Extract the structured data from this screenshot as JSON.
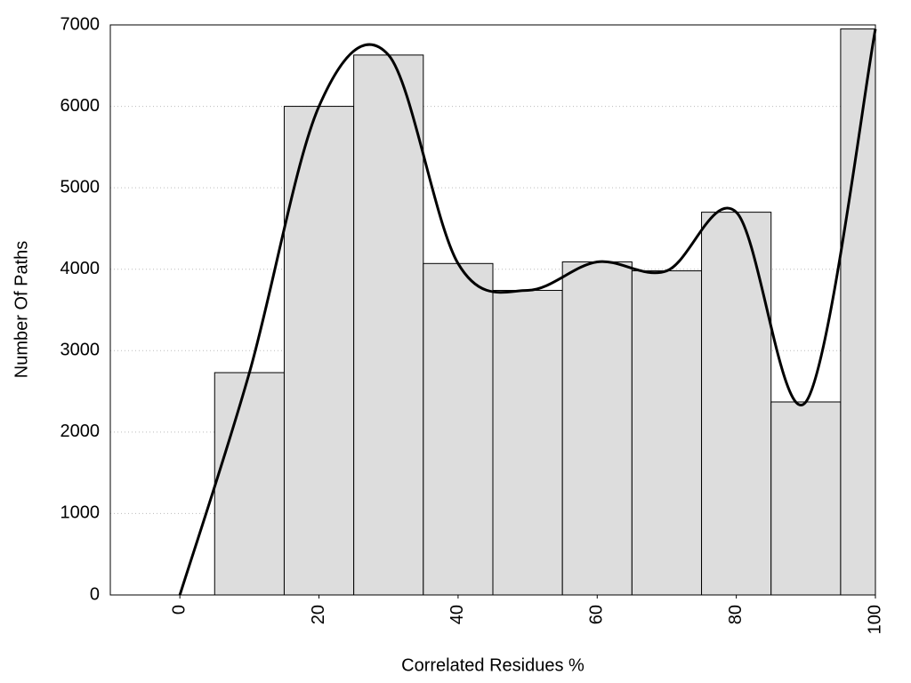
{
  "chart_data": {
    "type": "histogram",
    "xlabel": "Correlated Residues %",
    "ylabel": "Number Of Paths",
    "bins": [
      5,
      15,
      25,
      35,
      45,
      55,
      65,
      75,
      85,
      95,
      100
    ],
    "counts": [
      2730,
      6000,
      6630,
      4070,
      3740,
      4090,
      3980,
      4700,
      2370,
      6950
    ],
    "color": "#dddddd",
    "curve": {
      "x": [
        0,
        10,
        20,
        30,
        40,
        50,
        60,
        70,
        80,
        90,
        100
      ],
      "values": [
        0,
        2730,
        6000,
        6630,
        4070,
        3740,
        4090,
        3980,
        4700,
        2370,
        6950
      ],
      "color": "#000000"
    },
    "xlim": [
      -10,
      100
    ],
    "ylim": [
      0,
      7000
    ],
    "xticks": [
      0,
      20,
      40,
      60,
      80,
      100
    ],
    "yticks": [
      0,
      1000,
      2000,
      3000,
      4000,
      5000,
      6000,
      7000
    ],
    "grid": true
  }
}
